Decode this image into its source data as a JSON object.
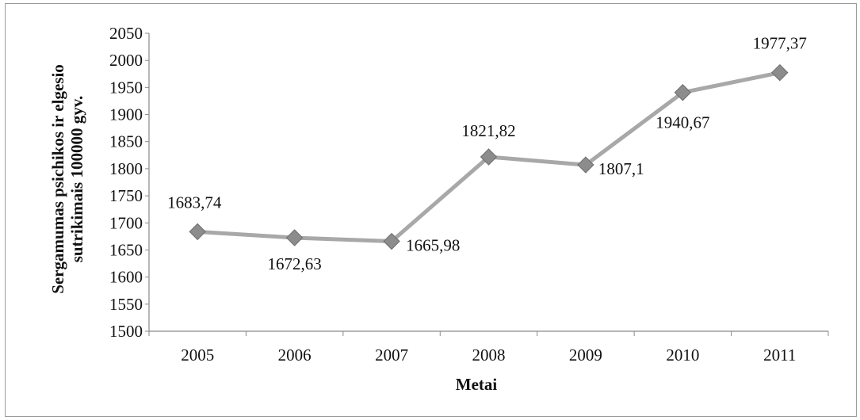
{
  "chart_data": {
    "type": "line",
    "title": "",
    "xlabel": "Metai",
    "ylabel_lines": [
      "Sergamumas psichikos ir elgesio",
      "sutrikimais 100000 gyv."
    ],
    "categories": [
      "2005",
      "2006",
      "2007",
      "2008",
      "2009",
      "2010",
      "2011"
    ],
    "values": [
      1683.74,
      1672.63,
      1665.98,
      1821.82,
      1807.1,
      1940.67,
      1977.37
    ],
    "data_labels": [
      "1683,74",
      "1672,63",
      "1665,98",
      "1821,82",
      "1807,1",
      "1940,67",
      "1977,37"
    ],
    "ylim": [
      1500,
      2050
    ],
    "ytick_step": 50,
    "legend": false,
    "grid": false,
    "line_color": "#a8a8a8",
    "marker_color": "#8c8c8c"
  }
}
